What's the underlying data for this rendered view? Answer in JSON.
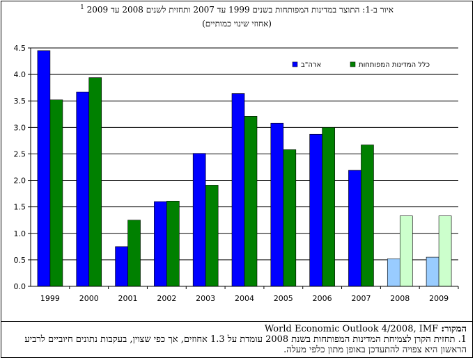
{
  "title": "איור ב-1: התוצר במדינות המפותחות בשנים 1999 עד 2007 ותחזית לשנים 2008 עד 2009",
  "title_footnote_mark": "1",
  "subtitle": "(אחוזי שינוי כמותיים)",
  "source_label": "המקור:",
  "source_text": "World Economic Outlook 4/2008, IMF",
  "note": "1. תחזית הקרן לצמיחת המדינות המפותחות בשנת 2008 עומדת על 1.3 אחוזים, אך כפי שצוין, בעקבות נתונים חיוביים לרביע הראשון היא צפויה להתעדכן באופן מתון כלפי מעלה.",
  "chart_data": {
    "type": "bar",
    "categories": [
      "1999",
      "2000",
      "2001",
      "2002",
      "2003",
      "2004",
      "2005",
      "2006",
      "2007",
      "2008",
      "2009"
    ],
    "series": [
      {
        "name": "ארה\"ב",
        "color": "#0000ff",
        "forecast_color": "#99ccff",
        "values": [
          4.45,
          3.67,
          0.75,
          1.6,
          2.51,
          3.64,
          3.08,
          2.87,
          2.19,
          0.52,
          0.55
        ]
      },
      {
        "name": "כלל המדינות המפותחות",
        "color": "#008000",
        "forecast_color": "#ccffcc",
        "values": [
          3.52,
          3.94,
          1.25,
          1.61,
          1.91,
          3.21,
          2.58,
          3.0,
          2.67,
          1.33,
          1.33
        ]
      }
    ],
    "forecast_categories": [
      "2008",
      "2009"
    ],
    "y_ticks": [
      "0.0",
      "0.5",
      "1.0",
      "1.5",
      "2.0",
      "2.5",
      "3.0",
      "3.5",
      "4.0",
      "4.5"
    ],
    "ylim": [
      0,
      4.5
    ],
    "grid": true,
    "legend_position": "top-right"
  }
}
